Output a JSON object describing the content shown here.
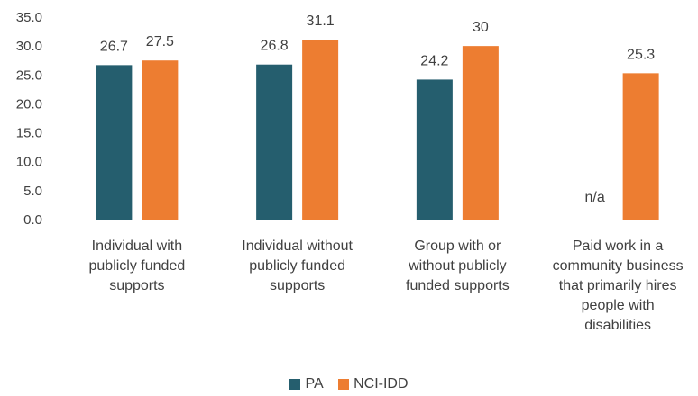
{
  "chart_data": {
    "type": "bar",
    "categories": [
      [
        "Individual with",
        "publicly funded",
        "supports"
      ],
      [
        "Individual without",
        "publicly funded",
        "supports"
      ],
      [
        "Group with or",
        "without publicly",
        "funded supports"
      ],
      [
        "Paid work in a",
        "community business",
        "that primarily hires",
        "people with",
        "disabilities"
      ]
    ],
    "series": [
      {
        "name": "PA",
        "color": "#255e6e",
        "values": [
          26.7,
          26.8,
          24.2,
          null
        ],
        "labels": [
          "26.7",
          "26.8",
          "24.2",
          "n/a"
        ]
      },
      {
        "name": "NCI-IDD",
        "color": "#ed7d31",
        "values": [
          27.5,
          31.1,
          30,
          25.3
        ],
        "labels": [
          "27.5",
          "31.1",
          "30",
          "25.3"
        ]
      }
    ],
    "ylim": [
      0,
      35
    ],
    "yticks": [
      "0.0",
      "5.0",
      "10.0",
      "15.0",
      "20.0",
      "25.0",
      "30.0",
      "35.0"
    ],
    "grid": false,
    "legend_position": "bottom",
    "title": "",
    "xlabel": "",
    "ylabel": ""
  }
}
